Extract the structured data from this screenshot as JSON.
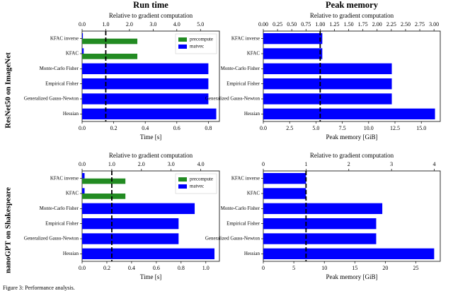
{
  "caption": "Figure 3: Performance analysis.",
  "chart_data": [
    {
      "type": "bar",
      "orientation": "horizontal",
      "title": "Run time",
      "row_label": "ResNet50 on ImageNet",
      "xlabel": "Time [s]",
      "x2label": "Relative to gradient computation",
      "categories": [
        "KFAC inverse",
        "KFAC",
        "Monte-Carlo Fisher",
        "Empirical Fisher",
        "Generalized Gauss-Newton",
        "Hessian"
      ],
      "series": [
        {
          "name": "precompute",
          "color": "#228b22",
          "values": [
            0.35,
            0.35,
            null,
            null,
            null,
            null
          ]
        },
        {
          "name": "matvec",
          "color": "#0000ff",
          "values": [
            0.005,
            0.01,
            0.8,
            0.8,
            0.8,
            0.85
          ]
        }
      ],
      "legend": "upper right",
      "gradient_reference": 0.15,
      "xlim": [
        0,
        0.87
      ],
      "xticks": [
        {
          "value": 0,
          "label": "0.0"
        },
        0.2,
        0.4,
        0.6,
        0.8
      ],
      "x2lim": [
        0,
        5.8
      ],
      "x2ticks": [
        {
          "value": 0,
          "label": "0.0"
        },
        {
          "value": 1,
          "label": "1.0"
        },
        {
          "value": 2,
          "label": "2.0"
        },
        {
          "value": 3,
          "label": "3.0"
        },
        {
          "value": 4,
          "label": "4.0"
        },
        {
          "value": 5,
          "label": "5.0"
        }
      ]
    },
    {
      "type": "bar",
      "orientation": "horizontal",
      "title": "Peak memory",
      "xlabel": "Peak memory [GiB]",
      "x2label": "Relative to gradient computation",
      "categories": [
        "KFAC inverse",
        "KFAC",
        "Monte-Carlo Fisher",
        "Empirical Fisher",
        "Generalized Gauss-Newton",
        "Hessian"
      ],
      "color": "#0000ff",
      "values": [
        5.6,
        5.6,
        12.2,
        12.2,
        12.2,
        16.3
      ],
      "gradient_reference": 5.4,
      "xlim": [
        0,
        16.8
      ],
      "xticks": [
        {
          "value": 0,
          "label": "0.0"
        },
        2.5,
        {
          "value": 5,
          "label": "5.0"
        },
        7.5,
        {
          "value": 10,
          "label": "10.0"
        },
        12.5,
        {
          "value": 15,
          "label": "15.0"
        }
      ],
      "x2lim": [
        0,
        3.11
      ],
      "x2ticks": [
        {
          "value": 0,
          "label": "0.00"
        },
        0.25,
        {
          "value": 0.5,
          "label": "0.50"
        },
        0.75,
        {
          "value": 1,
          "label": "1.00"
        },
        1.25,
        {
          "value": 1.5,
          "label": "1.50"
        },
        1.75,
        {
          "value": 2,
          "label": "2.00"
        },
        2.25,
        {
          "value": 2.5,
          "label": "2.50"
        },
        2.75,
        {
          "value": 3,
          "label": "3.00"
        }
      ]
    },
    {
      "type": "bar",
      "orientation": "horizontal",
      "row_label": "nanoGPT on Shakespeare",
      "xlabel": "Time [s]",
      "x2label": "Relative to gradient computation",
      "categories": [
        "KFAC inverse",
        "KFAC",
        "Monte-Carlo Fisher",
        "Empirical Fisher",
        "Generalized Gauss-Newton",
        "Hessian"
      ],
      "series": [
        {
          "name": "precompute",
          "color": "#228b22",
          "values": [
            0.35,
            0.35,
            null,
            null,
            null,
            null
          ]
        },
        {
          "name": "matvec",
          "color": "#0000ff",
          "values": [
            0.02,
            0.02,
            0.91,
            0.78,
            0.78,
            1.07
          ]
        }
      ],
      "legend": "upper right",
      "gradient_reference": 0.24,
      "xlim": [
        0,
        1.11
      ],
      "xticks": [
        {
          "value": 0,
          "label": "0.0"
        },
        0.2,
        0.4,
        0.6,
        0.8,
        {
          "value": 1,
          "label": "1.0"
        }
      ],
      "x2lim": [
        0,
        4.63
      ],
      "x2ticks": [
        {
          "value": 0,
          "label": "0.0"
        },
        {
          "value": 1,
          "label": "1.0"
        },
        {
          "value": 2,
          "label": "2.0"
        },
        {
          "value": 3,
          "label": "3.0"
        },
        {
          "value": 4,
          "label": "4.0"
        }
      ]
    },
    {
      "type": "bar",
      "orientation": "horizontal",
      "xlabel": "Peak memory [GiB]",
      "x2label": "Relative to gradient computation",
      "categories": [
        "KFAC inverse",
        "KFAC",
        "Monte-Carlo Fisher",
        "Empirical Fisher",
        "Generalized Gauss-Newton",
        "Hessian"
      ],
      "color": "#0000ff",
      "values": [
        7.0,
        7.0,
        19.5,
        18.5,
        18.5,
        28.0
      ],
      "gradient_reference": 7.0,
      "xlim": [
        0,
        29
      ],
      "xticks": [
        0,
        5,
        10,
        15,
        20,
        25
      ],
      "x2lim": [
        0,
        4.14
      ],
      "x2ticks": [
        0,
        1,
        2,
        3,
        4
      ]
    }
  ]
}
